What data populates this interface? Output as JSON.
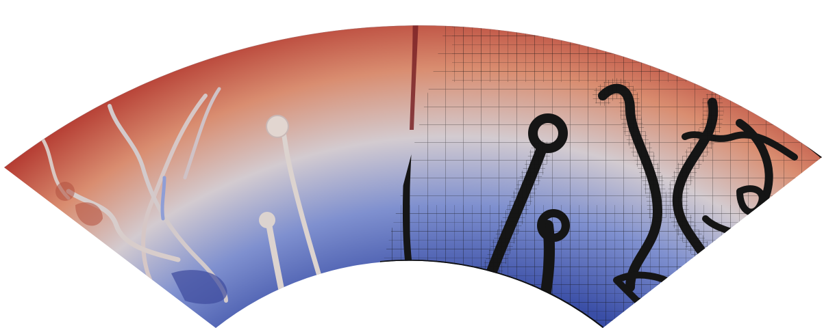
{
  "figure": {
    "subject": "mantle-convection-annulus-sector",
    "left_half_shading": "temperature-field",
    "right_half_shading": "temperature-field-with-adaptive-mesh-overlay",
    "colors": {
      "background": "#ffffff",
      "hot": "#a9272b",
      "warm": "#d9866a",
      "neutral": "#dcd3cf",
      "cool": "#8ea0d6",
      "cold": "#3a4ea6",
      "mesh_line": "#111111"
    }
  }
}
